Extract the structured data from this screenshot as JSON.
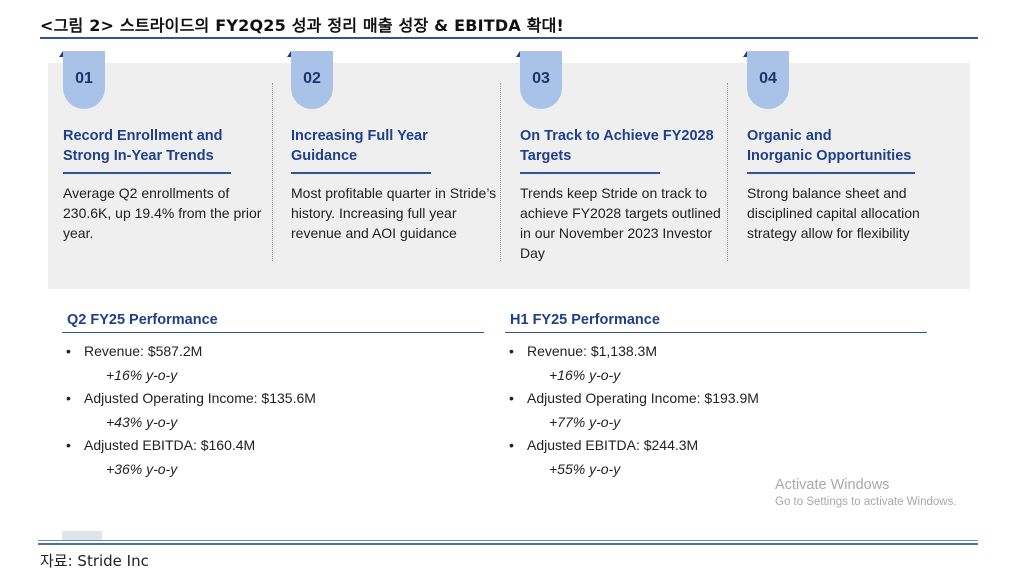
{
  "figure": {
    "title": "<그림 2> 스트라이드의 FY2Q25 성과 정리 매출 성장 & EBITDA 확대!",
    "source": "자료: Stride Inc"
  },
  "cards": [
    {
      "number": "01",
      "heading_line1": "Record Enrollment and",
      "heading_line2": "Strong In-Year Trends",
      "body": "Average Q2 enrollments of 230.6K, up 19.4% from the prior year."
    },
    {
      "number": "02",
      "heading_line1": "Increasing Full Year",
      "heading_line2": "Guidance",
      "body": "Most profitable quarter in Stride’s history. Increasing full year revenue and AOI guidance"
    },
    {
      "number": "03",
      "heading_line1": "On Track to Achieve FY2028",
      "heading_line2": "Targets",
      "body": "Trends keep Stride on track to achieve FY2028 targets outlined in our November 2023 Investor Day"
    },
    {
      "number": "04",
      "heading_line1": "Organic and",
      "heading_line2": "Inorganic Opportunities",
      "body": "Strong balance sheet and disciplined capital allocation strategy allow for flexibility"
    }
  ],
  "q2": {
    "title": "Q2 FY25 Performance",
    "items": [
      {
        "bullet": "•",
        "label": "Revenue: $587.2M",
        "growth": "+16% y-o-y"
      },
      {
        "bullet": "•",
        "label": "Adjusted Operating Income: $135.6M",
        "growth": "+43% y-o-y"
      },
      {
        "bullet": "•",
        "label": "Adjusted EBITDA: $160.4M",
        "growth": "+36% y-o-y"
      }
    ]
  },
  "h1": {
    "title": "H1 FY25 Performance",
    "items": [
      {
        "bullet": "•",
        "label": "Revenue: $1,138.3M",
        "growth": "+16% y-o-y"
      },
      {
        "bullet": "•",
        "label": "Adjusted Operating Income: $193.9M",
        "growth": "+77% y-o-y"
      },
      {
        "bullet": "•",
        "label": "Adjusted EBITDA: $244.3M",
        "growth": "+55% y-o-y"
      }
    ]
  },
  "watermark": {
    "line1": "Activate Windows",
    "line2": "Go to Settings to activate Windows."
  },
  "colors": {
    "accent_navy": "#1f3f88",
    "tab_blue": "#a9c3e8",
    "panel_gray": "#efeff0",
    "rule_blue": "#2f5597"
  }
}
